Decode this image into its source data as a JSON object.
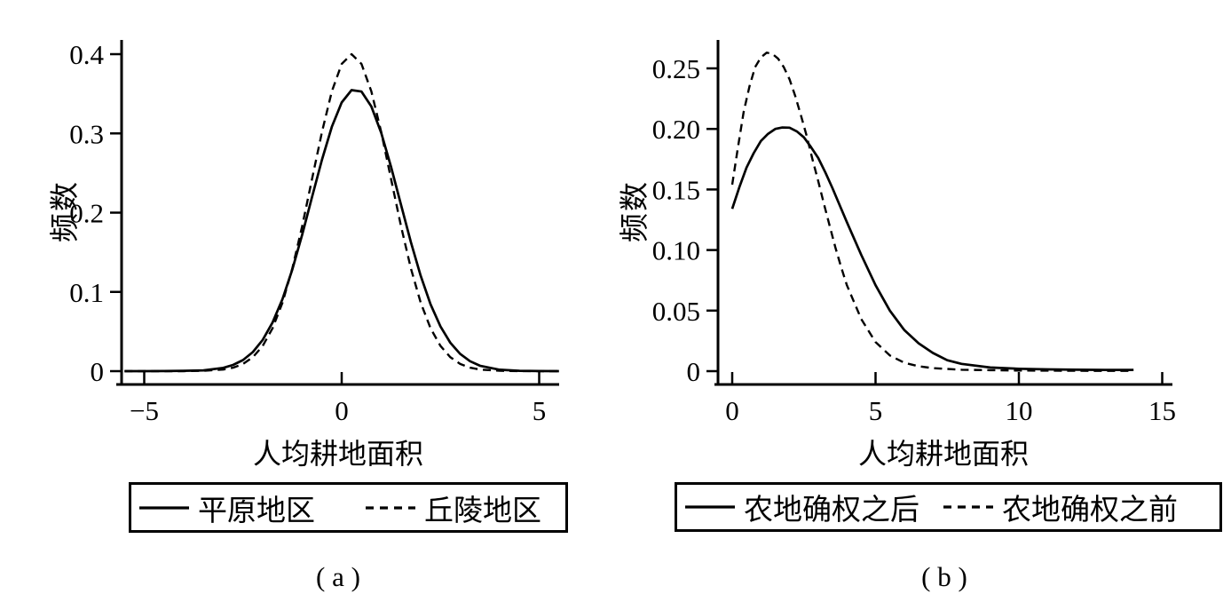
{
  "figure": {
    "background": "#ffffff",
    "ink_color": "#000000"
  },
  "chart_data": [
    {
      "panel": "a",
      "type": "line",
      "caption": "( a )",
      "xlabel": "人均耕地面积",
      "ylabel": "频数",
      "xlim": [
        -5.6,
        5.6
      ],
      "ylim": [
        0,
        0.435
      ],
      "grid": false,
      "legend_position": "bottom-box",
      "x_ticks": [
        {
          "v": -5,
          "label": "−5"
        },
        {
          "v": 0,
          "label": "0"
        },
        {
          "v": 5,
          "label": "5"
        }
      ],
      "y_ticks": [
        {
          "v": 0,
          "label": "0"
        },
        {
          "v": 0.1,
          "label": "0.1"
        },
        {
          "v": 0.2,
          "label": "0.2"
        },
        {
          "v": 0.3,
          "label": "0.3"
        },
        {
          "v": 0.4,
          "label": "0.4"
        }
      ],
      "series": [
        {
          "name": "平原地区",
          "style": "solid",
          "x": [
            -5.5,
            -5,
            -4.5,
            -4,
            -3.5,
            -3,
            -2.75,
            -2.5,
            -2.25,
            -2,
            -1.75,
            -1.5,
            -1.25,
            -1,
            -0.75,
            -0.5,
            -0.25,
            0,
            0.25,
            0.5,
            0.75,
            1,
            1.25,
            1.5,
            1.75,
            2,
            2.25,
            2.5,
            2.75,
            3,
            3.25,
            3.5,
            4,
            4.5,
            5,
            5.5
          ],
          "y": [
            0,
            0,
            0.0001,
            0.0005,
            0.001,
            0.0041,
            0.0078,
            0.014,
            0.0241,
            0.0394,
            0.0614,
            0.091,
            0.1284,
            0.1722,
            0.2198,
            0.2669,
            0.3084,
            0.3391,
            0.3546,
            0.3528,
            0.334,
            0.3008,
            0.2578,
            0.2101,
            0.163,
            0.1203,
            0.0844,
            0.0564,
            0.0359,
            0.0217,
            0.0125,
            0.0068,
            0.0018,
            0.0004,
            0.0001,
            0
          ]
        },
        {
          "name": "丘陵地区",
          "style": "dashed",
          "x": [
            -5.5,
            -5,
            -4.5,
            -4,
            -3.5,
            -3,
            -2.75,
            -2.5,
            -2.25,
            -2,
            -1.75,
            -1.5,
            -1.25,
            -1,
            -0.75,
            -0.5,
            -0.25,
            0,
            0.25,
            0.5,
            0.75,
            1,
            1.25,
            1.5,
            1.75,
            2,
            2.25,
            2.5,
            2.75,
            3,
            3.25,
            3.5,
            4,
            4.5,
            5,
            5.5
          ],
          "y": [
            0,
            0,
            0,
            0,
            0.0004,
            0.002,
            0.0044,
            0.0091,
            0.0176,
            0.0318,
            0.0541,
            0.0865,
            0.1299,
            0.1831,
            0.2426,
            0.302,
            0.353,
            0.3877,
            0.4,
            0.3877,
            0.353,
            0.302,
            0.2426,
            0.1831,
            0.1299,
            0.0865,
            0.0541,
            0.0318,
            0.0176,
            0.0091,
            0.0044,
            0.002,
            0.0004,
            0.0001,
            0,
            0
          ]
        }
      ]
    },
    {
      "panel": "b",
      "type": "line",
      "caption": "( b )",
      "xlabel": "人均耕地面积",
      "ylabel": "频数",
      "xlim": [
        -0.6,
        15.4
      ],
      "ylim": [
        0,
        0.275
      ],
      "grid": false,
      "legend_position": "bottom-box",
      "x_ticks": [
        {
          "v": 0,
          "label": "0"
        },
        {
          "v": 5,
          "label": "5"
        },
        {
          "v": 10,
          "label": "10"
        },
        {
          "v": 15,
          "label": "15"
        }
      ],
      "y_ticks": [
        {
          "v": 0,
          "label": "0"
        },
        {
          "v": 0.05,
          "label": "0.05"
        },
        {
          "v": 0.1,
          "label": "0.10"
        },
        {
          "v": 0.15,
          "label": "0.15"
        },
        {
          "v": 0.2,
          "label": "0.20"
        },
        {
          "v": 0.25,
          "label": "0.25"
        }
      ],
      "series": [
        {
          "name": "农地确权之后",
          "style": "solid",
          "x": [
            0,
            0.25,
            0.5,
            0.75,
            1,
            1.25,
            1.5,
            1.75,
            2,
            2.25,
            2.5,
            2.75,
            3,
            3.25,
            3.5,
            3.75,
            4,
            4.5,
            5,
            5.5,
            6,
            6.5,
            7,
            7.5,
            8,
            9,
            10,
            11,
            12,
            13,
            14
          ],
          "y": [
            0.134,
            0.152,
            0.168,
            0.18,
            0.19,
            0.196,
            0.2,
            0.2012,
            0.201,
            0.198,
            0.193,
            0.185,
            0.176,
            0.164,
            0.151,
            0.137,
            0.123,
            0.096,
            0.071,
            0.05,
            0.034,
            0.023,
            0.015,
            0.009,
            0.006,
            0.003,
            0.002,
            0.0015,
            0.0012,
            0.001,
            0.001
          ]
        },
        {
          "name": "农地确权之前",
          "style": "dashed",
          "x": [
            0,
            0.2,
            0.4,
            0.6,
            0.8,
            1,
            1.2,
            1.4,
            1.6,
            1.8,
            2,
            2.2,
            2.4,
            2.6,
            2.8,
            3,
            3.2,
            3.4,
            3.6,
            3.8,
            4,
            4.5,
            5,
            5.5,
            6,
            6.5,
            7,
            8,
            9,
            10,
            12,
            14
          ],
          "y": [
            0.154,
            0.185,
            0.214,
            0.235,
            0.251,
            0.259,
            0.263,
            0.262,
            0.258,
            0.251,
            0.241,
            0.227,
            0.211,
            0.194,
            0.175,
            0.157,
            0.138,
            0.12,
            0.102,
            0.086,
            0.071,
            0.043,
            0.024,
            0.013,
            0.007,
            0.004,
            0.0025,
            0.0012,
            0.0008,
            0.0005,
            0.0003,
            0.0002
          ]
        }
      ]
    }
  ]
}
